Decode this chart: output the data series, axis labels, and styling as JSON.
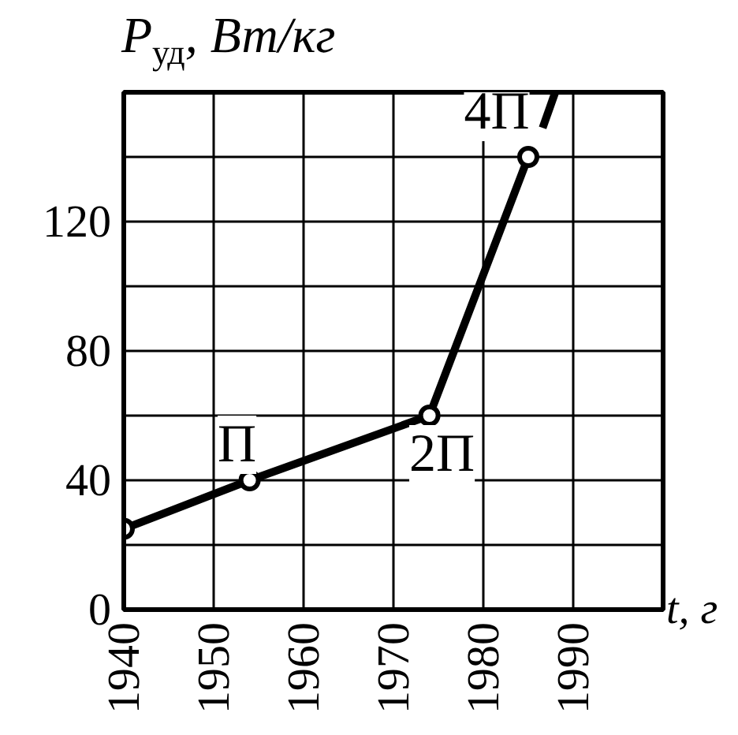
{
  "chart_data": {
    "type": "line",
    "ylabel": "P$_{уд}$, Вт/кг",
    "xlabel": "t, г",
    "x": [
      1940,
      1954,
      1974,
      1985
    ],
    "series": [
      {
        "color": "#000000",
        "values": [
          25,
          40,
          60,
          140
        ]
      },
      {
        "color": "#000000",
        "x": [
          1986.6,
          1988
        ],
        "values": [
          149,
          160
        ],
        "marker": "none"
      }
    ],
    "annotations": [
      {
        "text": "П",
        "x": 1954,
        "y": 40
      },
      {
        "text": "2П",
        "x": 1974,
        "y": 60
      },
      {
        "text": "4П",
        "x": 1985,
        "y": 140
      }
    ],
    "xlim": [
      1940,
      2000
    ],
    "xticks": [
      1940,
      1950,
      1960,
      1970,
      1980,
      1990,
      {
        "value": 2000,
        "label": null
      }
    ],
    "ylim": [
      0,
      160
    ],
    "yticks": [
      0,
      {
        "value": 20,
        "label": null
      },
      40,
      {
        "value": 60,
        "label": null
      },
      80,
      {
        "value": 100,
        "label": null
      },
      120,
      {
        "value": 140,
        "label": null
      },
      {
        "value": 160,
        "label": null
      }
    ],
    "grid": true,
    "marker": "circle",
    "line_style": "solid"
  }
}
